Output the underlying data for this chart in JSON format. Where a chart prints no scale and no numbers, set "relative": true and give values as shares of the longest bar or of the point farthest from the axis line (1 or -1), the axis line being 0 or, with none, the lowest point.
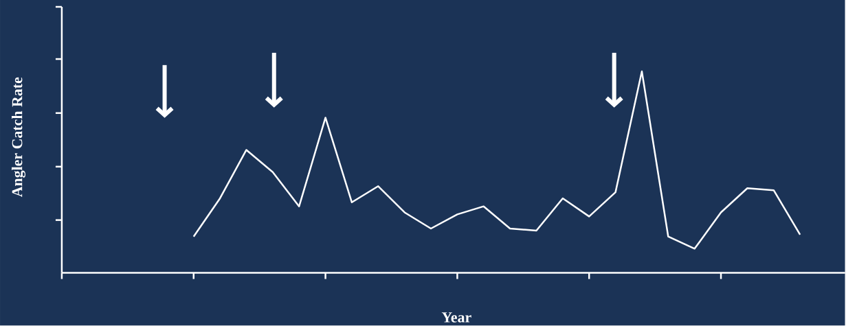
{
  "chart_data": {
    "type": "line",
    "relative": true,
    "xlabel": "Year",
    "ylabel": "Angler Catch Rate",
    "color": "#ffffff",
    "grid": false,
    "marker": "none",
    "line_style": "solid",
    "categories": [
      null,
      null,
      null,
      null,
      null,
      null,
      null,
      null,
      null,
      null,
      null,
      null,
      null,
      null,
      null,
      null,
      null,
      null,
      null,
      null,
      null,
      null,
      null,
      null,
      null,
      null,
      null,
      null,
      null
    ],
    "values": [
      null,
      null,
      null,
      null,
      null,
      0.18,
      0.37,
      0.61,
      0.5,
      0.33,
      0.77,
      0.35,
      0.43,
      0.3,
      0.22,
      0.29,
      0.33,
      0.22,
      0.21,
      0.37,
      0.28,
      0.4,
      1,
      0.18,
      0.12,
      0.3,
      0.42,
      0.41,
      0.19
    ]
  }
}
